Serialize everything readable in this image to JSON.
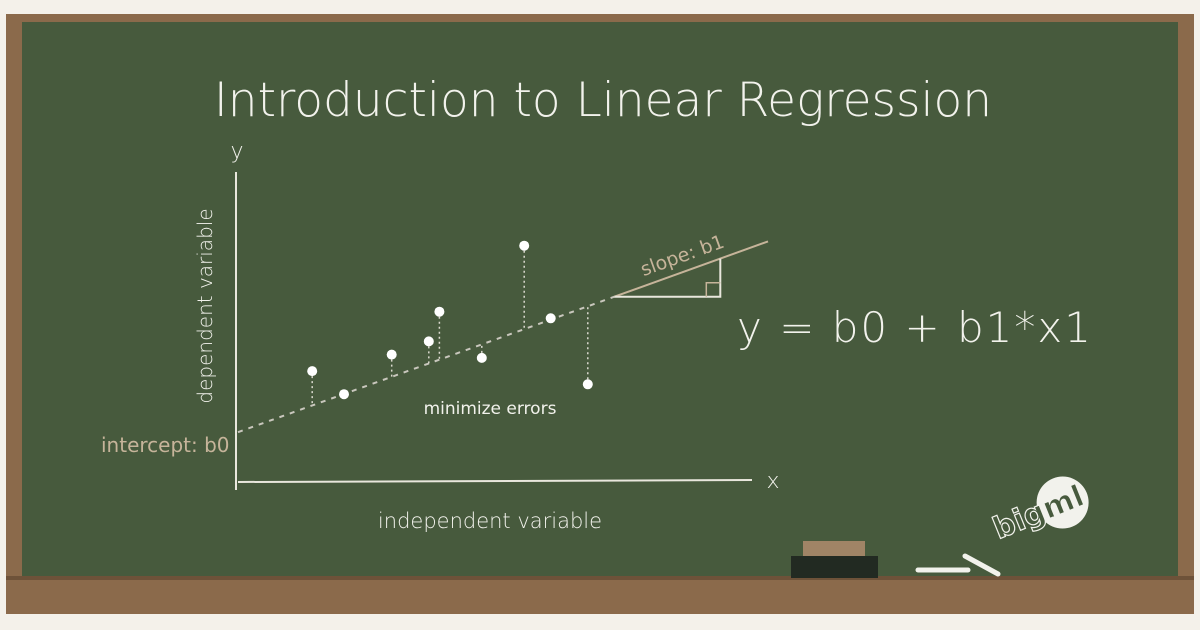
{
  "colors": {
    "board": "#475a3d",
    "frame": "#8b6a4b",
    "chalk": "#f2f2ec",
    "tan_chalk": "#c6b49a",
    "eraser_felt": "#222a22",
    "eraser_top": "#a08466"
  },
  "title": "Introduction to Linear Regression",
  "equation": "y = b0 + b1*x1",
  "chart_data": {
    "type": "scatter",
    "xlabel": "independent variable",
    "ylabel": "dependent variable",
    "x_axis_letter": "x",
    "y_axis_letter": "y",
    "xlim": [
      0,
      10
    ],
    "ylim": [
      0,
      10
    ],
    "grid": false,
    "regression_line": {
      "intercept": 1.45,
      "slope": 0.578,
      "x_end": 10
    },
    "points": [
      {
        "x": 1.4,
        "y": 3.3
      },
      {
        "x": 2.0,
        "y": 2.6
      },
      {
        "x": 2.9,
        "y": 3.8
      },
      {
        "x": 3.6,
        "y": 4.2
      },
      {
        "x": 3.8,
        "y": 5.1
      },
      {
        "x": 4.6,
        "y": 3.7
      },
      {
        "x": 5.4,
        "y": 7.1
      },
      {
        "x": 5.9,
        "y": 4.9
      },
      {
        "x": 6.6,
        "y": 2.9
      }
    ],
    "slope_triangle": {
      "x0": 7.1,
      "x1": 9.1
    },
    "annotations": {
      "slope_label": "slope: b1",
      "intercept_label": "intercept: b0",
      "errors_label": "minimize errors"
    }
  },
  "logo": {
    "text": "bigml",
    "icon": "bigml-logo"
  },
  "tray_items": [
    "eraser-icon",
    "chalk-stick-icon"
  ]
}
